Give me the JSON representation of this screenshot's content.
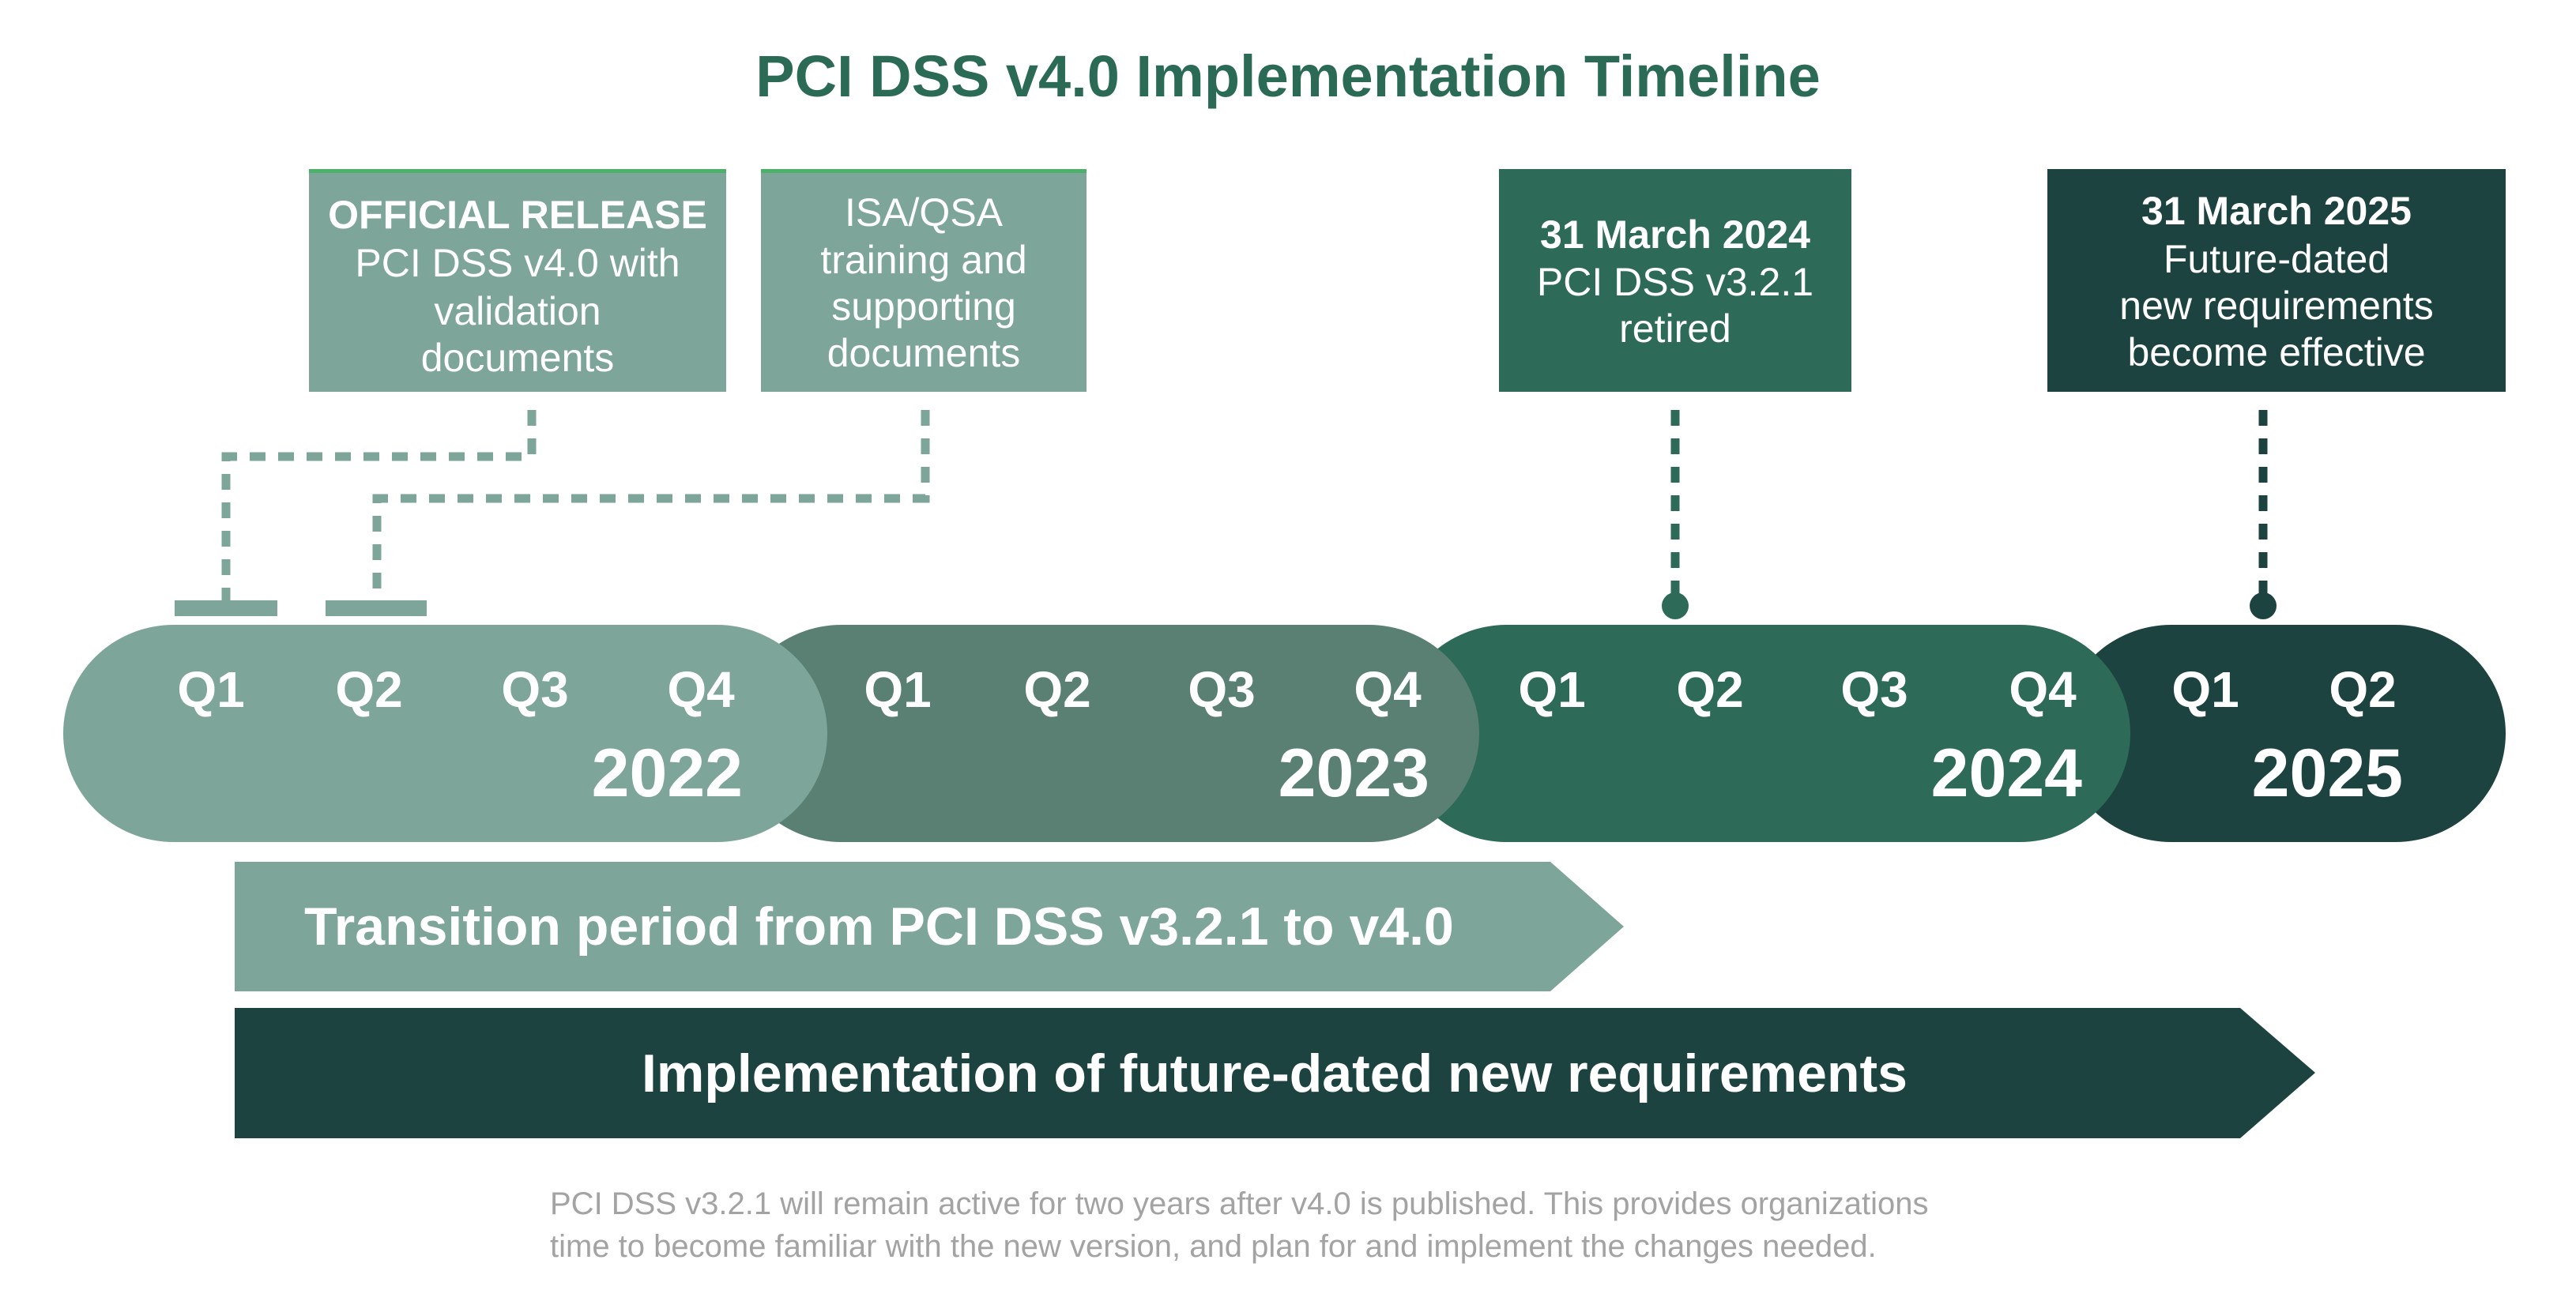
{
  "title": "PCI DSS v4.0 Implementation Timeline",
  "colors": {
    "title": "#2b6a55",
    "year_2022": "#7ea59a",
    "year_2023": "#5a7f73",
    "year_2024": "#2d6a58",
    "year_2025": "#1d4341",
    "footer_text": "#a3a3a3"
  },
  "callouts": [
    {
      "lines": [
        "OFFICIAL RELEASE",
        "PCI DSS v4.0 with",
        "validation",
        "documents"
      ]
    },
    {
      "lines": [
        "ISA/QSA",
        "training and",
        "supporting",
        "documents"
      ]
    },
    {
      "lines": [
        "31 March 2024",
        "PCI DSS v3.2.1",
        "retired"
      ]
    },
    {
      "lines": [
        "31 March 2025",
        "Future-dated",
        "new requirements",
        "become effective"
      ]
    }
  ],
  "timeline": {
    "years": [
      {
        "year": "2022",
        "quarters": [
          "Q1",
          "Q2",
          "Q3",
          "Q4"
        ]
      },
      {
        "year": "2023",
        "quarters": [
          "Q1",
          "Q2",
          "Q3",
          "Q4"
        ]
      },
      {
        "year": "2024",
        "quarters": [
          "Q1",
          "Q2",
          "Q3",
          "Q4"
        ]
      },
      {
        "year": "2025",
        "quarters": [
          "Q1",
          "Q2"
        ]
      }
    ]
  },
  "periods": [
    {
      "label": "Transition period from PCI DSS v3.2.1 to v4.0"
    },
    {
      "label": "Implementation of future-dated new requirements"
    }
  ],
  "footer": {
    "lines": [
      "PCI DSS v3.2.1 will remain active for two years after v4.0 is published. This provides organizations",
      "time to become familiar with the new version, and plan for and implement the changes needed."
    ]
  }
}
